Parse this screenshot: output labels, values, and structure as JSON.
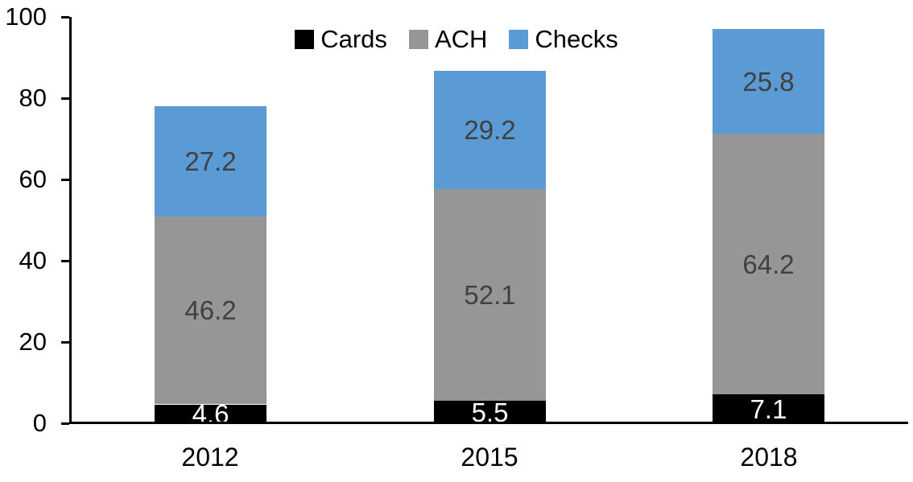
{
  "chart_data": {
    "type": "bar",
    "stacked": true,
    "title": "",
    "xlabel": "",
    "ylabel": "",
    "categories": [
      "2012",
      "2015",
      "2018"
    ],
    "series": [
      {
        "name": "Cards",
        "color": "#000000",
        "label_color": "#ffffff",
        "values": [
          4.6,
          5.5,
          7.1
        ]
      },
      {
        "name": "ACH",
        "color": "#969696",
        "label_color": "#404040",
        "values": [
          46.2,
          52.1,
          64.2
        ]
      },
      {
        "name": "Checks",
        "color": "#5B9BD5",
        "label_color": "#404040",
        "values": [
          27.2,
          29.2,
          25.8
        ]
      }
    ],
    "data_labels_shown": true,
    "ylim": [
      0,
      100
    ],
    "yticks": [
      0,
      20,
      40,
      60,
      80,
      100
    ],
    "grid": false,
    "legend_position": "top",
    "axis_color": "#000000",
    "background_color": "#ffffff"
  }
}
